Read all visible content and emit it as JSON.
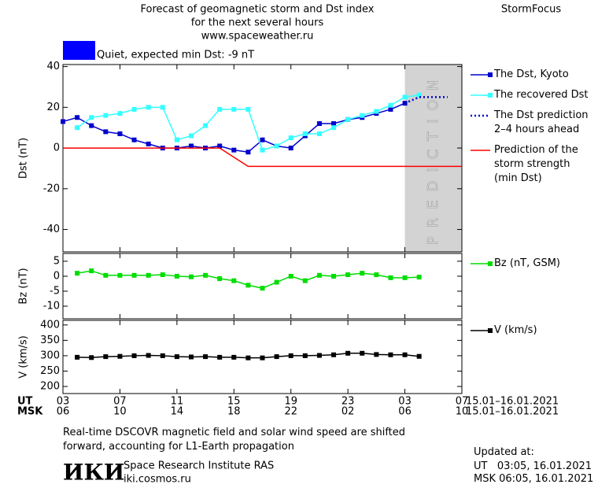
{
  "header": {
    "title_lines": [
      "Forecast of geomagnetic storm and Dst index",
      "for the next several hours",
      "www.spaceweather.ru"
    ],
    "brand": "StormFocus",
    "status": "Quiet, expected min Dst: -9 nT",
    "status_color": "#0000ff"
  },
  "chart_data": [
    {
      "type": "line",
      "ylabel": "Dst (nT)",
      "xlim": [
        0,
        28
      ],
      "ylim": [
        -51,
        41
      ],
      "yticks": [
        -40,
        -20,
        0,
        20,
        40
      ],
      "prediction_zone": {
        "label": "PREDICTION",
        "x": [
          24,
          28
        ],
        "color": "#d3d3d3"
      },
      "series": [
        {
          "name": "The Dst, Kyoto",
          "color": "#0000cc",
          "marker": true,
          "dash": false,
          "x": [
            0,
            1,
            2,
            3,
            4,
            5,
            6,
            7,
            8,
            9,
            10,
            11,
            12,
            13,
            14,
            15,
            16,
            17,
            18,
            19,
            20,
            21,
            22,
            23,
            24
          ],
          "values": [
            13,
            15,
            11,
            8,
            7,
            4,
            2,
            0,
            0,
            1,
            0,
            1,
            -1,
            -2,
            4,
            1,
            0,
            6,
            12,
            12,
            14,
            15,
            17,
            19,
            22
          ]
        },
        {
          "name": "The recovered Dst",
          "color": "#33ffff",
          "marker": true,
          "dash": false,
          "x": [
            1,
            2,
            3,
            4,
            5,
            6,
            7,
            8,
            9,
            10,
            11,
            12,
            13,
            14,
            15,
            16,
            17,
            18,
            19,
            20,
            21,
            22,
            23,
            24,
            25
          ],
          "values": [
            10,
            15,
            16,
            17,
            19,
            20,
            20,
            4,
            6,
            11,
            19,
            19,
            19,
            -1,
            1,
            5,
            7,
            7,
            10,
            14,
            16,
            18,
            21,
            25,
            26
          ]
        },
        {
          "name": "The Dst prediction\n2–4 hours ahead",
          "color": "#0000cc",
          "marker": false,
          "dash": true,
          "x": [
            24,
            25,
            26,
            27
          ],
          "values": [
            22,
            25,
            25,
            25
          ]
        },
        {
          "name": "Prediction of the\nstorm strength\n(min Dst)",
          "color": "#ff0000",
          "marker": false,
          "dash": false,
          "x": [
            0,
            11,
            13,
            28
          ],
          "values": [
            0,
            0,
            -9,
            -9
          ]
        }
      ]
    },
    {
      "type": "line",
      "ylabel": "Bz (nT)",
      "xlim": [
        0,
        28
      ],
      "ylim": [
        -14.2,
        7.6
      ],
      "yticks": [
        -10,
        -5,
        0,
        5
      ],
      "series": [
        {
          "name": "Bz (nT, GSM)",
          "color": "#00dd00",
          "marker": true,
          "dash": false,
          "x": [
            1,
            2,
            3,
            4,
            5,
            6,
            7,
            8,
            9,
            10,
            11,
            12,
            13,
            14,
            15,
            16,
            17,
            18,
            19,
            20,
            21,
            22,
            23,
            24,
            25
          ],
          "values": [
            1,
            1.8,
            0.3,
            0.3,
            0.3,
            0.3,
            0.5,
            0,
            -0.2,
            0.3,
            -0.8,
            -1.5,
            -3,
            -4,
            -2,
            0,
            -1.5,
            0.3,
            0,
            0.5,
            1,
            0.5,
            -0.5,
            -0.5,
            -0.3
          ]
        }
      ]
    },
    {
      "type": "line",
      "ylabel": "V (km/s)",
      "xlim": [
        0,
        28
      ],
      "ylim": [
        177,
        415
      ],
      "yticks": [
        200,
        250,
        300,
        350,
        400
      ],
      "xticks": [
        {
          "value": 0,
          "label": "03"
        },
        {
          "value": 4,
          "label": "07"
        },
        {
          "value": 8,
          "label": "11"
        },
        {
          "value": 12,
          "label": "15"
        },
        {
          "value": 16,
          "label": "19"
        },
        {
          "value": 20,
          "label": "23"
        },
        {
          "value": 24,
          "label": "03"
        },
        {
          "value": 28,
          "label": "07"
        }
      ],
      "x2ticks": [
        {
          "value": 0,
          "label": "06"
        },
        {
          "value": 4,
          "label": "10"
        },
        {
          "value": 8,
          "label": "14"
        },
        {
          "value": 12,
          "label": "18"
        },
        {
          "value": 16,
          "label": "22"
        },
        {
          "value": 20,
          "label": "02"
        },
        {
          "value": 24,
          "label": "06"
        },
        {
          "value": 28,
          "label": "10"
        }
      ],
      "xaxis_label": "UT",
      "x2axis_label": "MSK",
      "x_dates": "15.01–16.01.2021",
      "x2_dates": "15.01–16.01.2021",
      "series": [
        {
          "name": "V (km/s)",
          "color": "#000000",
          "marker": true,
          "dash": false,
          "x": [
            1,
            2,
            3,
            4,
            5,
            6,
            7,
            8,
            9,
            10,
            11,
            12,
            13,
            14,
            15,
            16,
            17,
            18,
            19,
            20,
            21,
            22,
            23,
            24,
            25
          ],
          "values": [
            295,
            294,
            297,
            298,
            300,
            301,
            300,
            297,
            296,
            297,
            295,
            295,
            293,
            293,
            297,
            300,
            300,
            301,
            303,
            308,
            308,
            304,
            303,
            303,
            298
          ]
        }
      ]
    }
  ],
  "footer": {
    "note": "Real-time DSCOVR magnetic field and solar wind speed are shifted\nforward, accounting for L1-Earth propagation",
    "logo": "ИКИ",
    "institute": "Space Research Institute RAS",
    "site": "iki.cosmos.ru",
    "updated_label": "Updated at:",
    "updated_ut": "UT   03:05, 16.01.2021",
    "updated_msk": "MSK 06:05, 16.01.2021"
  }
}
